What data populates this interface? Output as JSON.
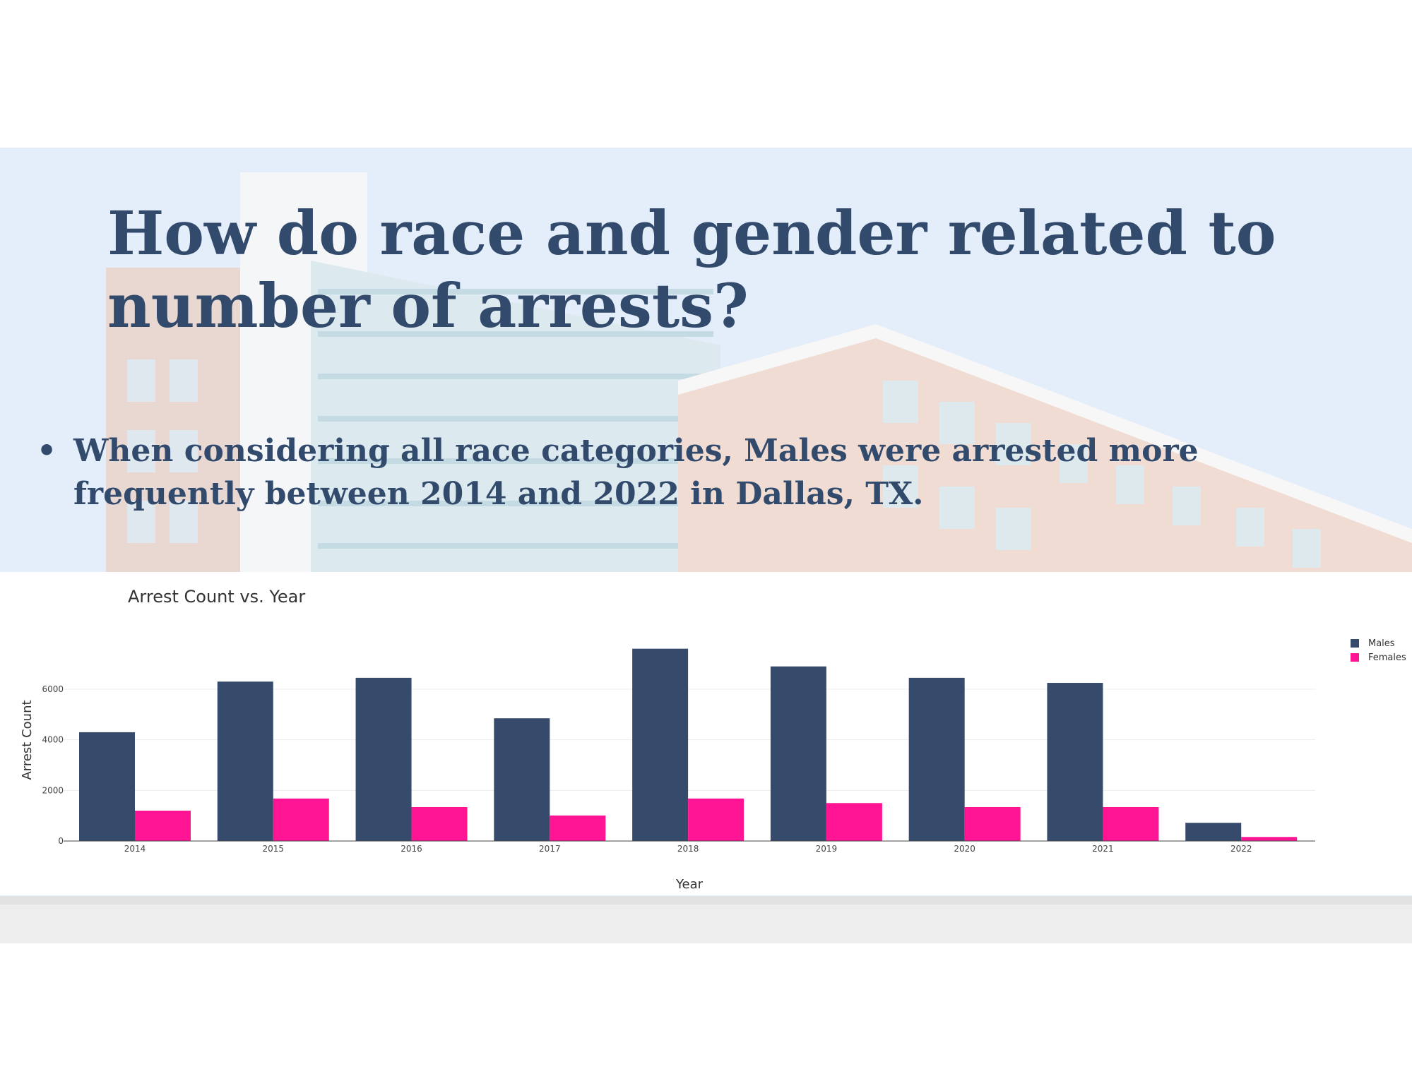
{
  "slide": {
    "title": "How do race and gender related to number of arrests?",
    "bullet": "When considering all race categories, Males were arrested more frequently between 2014 and 2022 in Dallas, TX.",
    "bullet_marker": "•"
  },
  "colors": {
    "text": "#324a6c",
    "males": "#364b6b",
    "females": "#ff1493",
    "grid": "#ececec"
  },
  "chart_data": {
    "type": "bar",
    "title": "Arrest Count vs. Year",
    "xlabel": "Year",
    "ylabel": "Arrest Count",
    "categories": [
      "2014",
      "2015",
      "2016",
      "2017",
      "2018",
      "2019",
      "2020",
      "2021",
      "2022"
    ],
    "series": [
      {
        "name": "Males",
        "values": [
          4300,
          6300,
          6450,
          4850,
          7600,
          6900,
          6450,
          6250,
          720
        ]
      },
      {
        "name": "Females",
        "values": [
          1200,
          1680,
          1340,
          1010,
          1680,
          1500,
          1340,
          1340,
          160
        ]
      }
    ],
    "yticks": [
      0,
      2000,
      4000,
      6000
    ],
    "ylim": [
      0,
      7600
    ],
    "grid": true,
    "legend": "top-right"
  }
}
